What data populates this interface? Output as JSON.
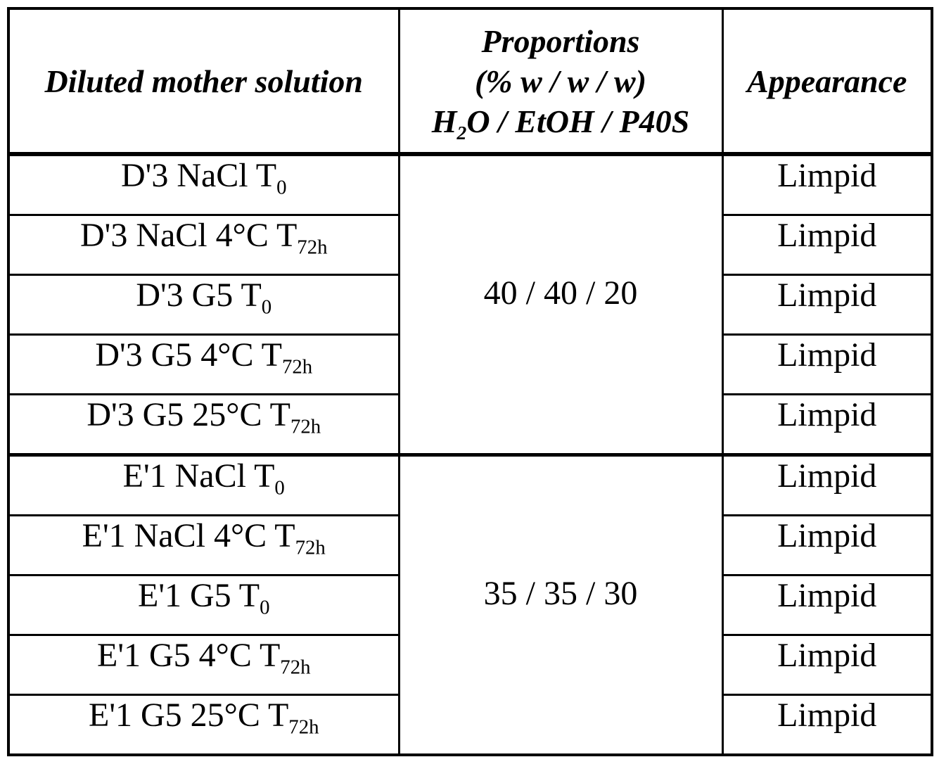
{
  "header": {
    "col1": "Diluted mother solution",
    "col2": {
      "line1": "Proportions",
      "line2": "(% w / w / w)",
      "line3_pre": "H",
      "line3_sub": "2",
      "line3_post": "O / EtOH / P40S"
    },
    "col3": "Appearance"
  },
  "groups": [
    {
      "proportion": "40 / 40 / 20",
      "rows": [
        {
          "base": "D'3 NaCl T",
          "sub": "0",
          "appearance": "Limpid"
        },
        {
          "base": "D'3 NaCl 4°C T",
          "sub": "72h",
          "appearance": "Limpid"
        },
        {
          "base": "D'3 G5 T",
          "sub": "0",
          "appearance": "Limpid"
        },
        {
          "base": "D'3 G5 4°C T",
          "sub": "72h",
          "appearance": "Limpid"
        },
        {
          "base": "D'3 G5 25°C T",
          "sub": "72h",
          "appearance": "Limpid"
        }
      ]
    },
    {
      "proportion": "35 / 35 / 30",
      "rows": [
        {
          "base": "E'1 NaCl T",
          "sub": "0",
          "appearance": "Limpid"
        },
        {
          "base": "E'1 NaCl 4°C T",
          "sub": "72h",
          "appearance": "Limpid"
        },
        {
          "base": "E'1 G5 T",
          "sub": "0",
          "appearance": "Limpid"
        },
        {
          "base": "E'1 G5 4°C T",
          "sub": "72h",
          "appearance": "Limpid"
        },
        {
          "base": "E'1 G5 25°C T",
          "sub": "72h",
          "appearance": "Limpid"
        }
      ]
    }
  ]
}
